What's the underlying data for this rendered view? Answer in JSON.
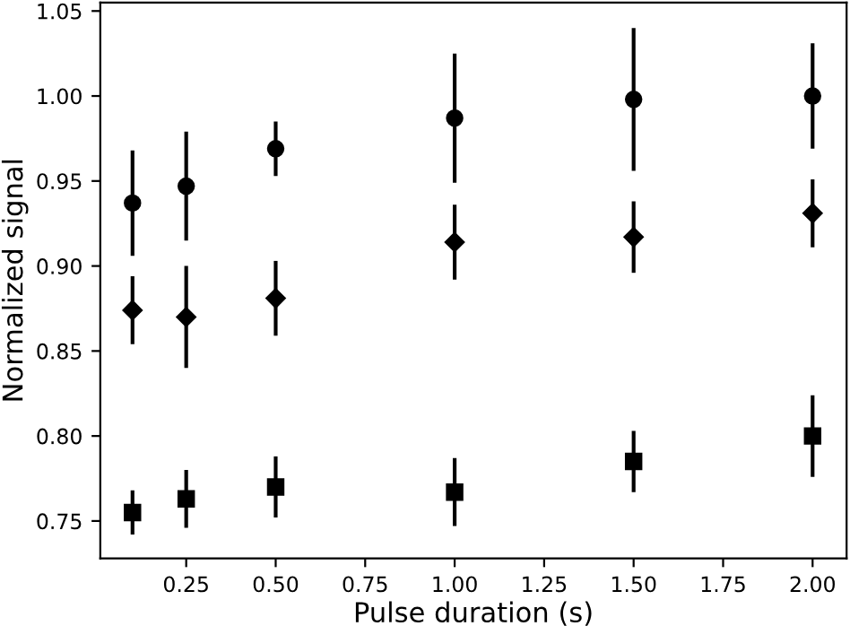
{
  "chart_data": {
    "type": "scatter",
    "xlabel": "Pulse duration (s)",
    "ylabel": "Normalized signal",
    "x": [
      0.1,
      0.25,
      0.5,
      1.0,
      1.5,
      2.0
    ],
    "series": [
      {
        "color": "#000000",
        "marker": "circle",
        "values": [
          0.937,
          0.947,
          0.969,
          0.987,
          0.998,
          1.0
        ],
        "errors": [
          0.031,
          0.032,
          0.016,
          0.038,
          0.042,
          0.031
        ]
      },
      {
        "color": "#000000",
        "marker": "diamond",
        "values": [
          0.874,
          0.87,
          0.881,
          0.914,
          0.917,
          0.931
        ],
        "errors": [
          0.02,
          0.03,
          0.022,
          0.022,
          0.021,
          0.02
        ]
      },
      {
        "color": "#000000",
        "marker": "square",
        "values": [
          0.755,
          0.763,
          0.77,
          0.767,
          0.785,
          0.8
        ],
        "errors": [
          0.013,
          0.017,
          0.018,
          0.02,
          0.018,
          0.024
        ]
      }
    ],
    "xlim": [
      0.01,
      2.095
    ],
    "ylim": [
      0.728,
      1.055
    ],
    "xticks": [
      {
        "value": 0.25,
        "label": "0.25"
      },
      {
        "value": 0.5,
        "label": "0.50"
      },
      {
        "value": 0.75,
        "label": "0.75"
      },
      {
        "value": 1.0,
        "label": "1.00"
      },
      {
        "value": 1.25,
        "label": "1.25"
      },
      {
        "value": 1.5,
        "label": "1.50"
      },
      {
        "value": 1.75,
        "label": "1.75"
      },
      {
        "value": 2.0,
        "label": "2.00"
      }
    ],
    "yticks": [
      {
        "value": 0.75,
        "label": "0.75"
      },
      {
        "value": 0.8,
        "label": "0.80"
      },
      {
        "value": 0.85,
        "label": "0.85"
      },
      {
        "value": 0.9,
        "label": "0.90"
      },
      {
        "value": 0.95,
        "label": "0.95"
      },
      {
        "value": 1.0,
        "label": "1.00"
      },
      {
        "value": 1.05,
        "label": "1.05"
      }
    ],
    "grid": false,
    "legend": false
  }
}
